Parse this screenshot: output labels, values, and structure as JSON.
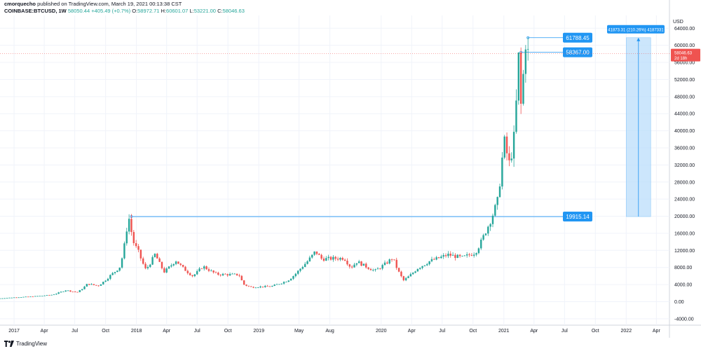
{
  "header": {
    "author": "cmorquecho",
    "published_text": "published on TradingView.com, March 19, 2021 00:13:38 CST",
    "symbol": "COINBASE:BTCUSD, 1W",
    "last": "58050.44",
    "change": "+405.49 (+0.7%)",
    "o_label": "O:",
    "o_value": "58972.71",
    "h_label": "H:",
    "h_value": "60601.07",
    "l_label": "L:",
    "l_value": "53221.00",
    "c_label": "C:",
    "c_value": "58046.63"
  },
  "colors": {
    "up": "#26a69a",
    "down": "#ef5350",
    "tag": "#2196f3",
    "price_tag": "#ef5350",
    "range_fill": "#bbdefb"
  },
  "annotations": {
    "range_box_label": "41873.31 (210.26%) 4187331",
    "current_price": "58046.63",
    "countdown": "2d 18h"
  },
  "footer": {
    "brand": "TradingView"
  },
  "chart_data": {
    "type": "candlestick",
    "currency_label": "USD",
    "y_ticks": [
      64000,
      60000,
      56000,
      52000,
      48000,
      44000,
      40000,
      36000,
      32000,
      28000,
      24000,
      20000,
      16000,
      12000,
      8000,
      4000,
      0,
      -4000
    ],
    "y_tick_labels": [
      "64000.00",
      "60000.00",
      "56000.00",
      "52000.00",
      "48000.00",
      "44000.00",
      "40000.00",
      "36000.00",
      "32000.00",
      "28000.00",
      "24000.00",
      "20000.00",
      "16000.00",
      "12000.00",
      "8000.00",
      "4000.00",
      "0.00",
      "-4000.00"
    ],
    "ylim": [
      -5500,
      67000
    ],
    "x_range": [
      "2016-11-20",
      "2022-05-10"
    ],
    "x_ticks": [
      {
        "date": "2017-01-01",
        "label": "2017"
      },
      {
        "date": "2017-04-01",
        "label": "Apr"
      },
      {
        "date": "2017-07-01",
        "label": "Jul"
      },
      {
        "date": "2017-10-01",
        "label": "Oct"
      },
      {
        "date": "2018-01-01",
        "label": "2018"
      },
      {
        "date": "2018-04-01",
        "label": "Apr"
      },
      {
        "date": "2018-07-01",
        "label": "Jul"
      },
      {
        "date": "2018-10-01",
        "label": "Oct"
      },
      {
        "date": "2019-01-01",
        "label": "2019"
      },
      {
        "date": "2019-05-01",
        "label": "May"
      },
      {
        "date": "2019-08-01",
        "label": "Aug"
      },
      {
        "date": "2020-01-01",
        "label": "2020"
      },
      {
        "date": "2020-04-01",
        "label": "Apr"
      },
      {
        "date": "2020-07-01",
        "label": "Jul"
      },
      {
        "date": "2020-10-01",
        "label": "Oct"
      },
      {
        "date": "2021-01-01",
        "label": "2021"
      },
      {
        "date": "2021-04-01",
        "label": "Apr"
      },
      {
        "date": "2021-07-01",
        "label": "Jul"
      },
      {
        "date": "2021-10-01",
        "label": "Oct"
      },
      {
        "date": "2022-01-01",
        "label": "2022"
      },
      {
        "date": "2022-04-01",
        "label": "Apr"
      }
    ],
    "anchors": [
      [
        "2016-11-20",
        740
      ],
      [
        "2017-01-01",
        960
      ],
      [
        "2017-03-01",
        1200
      ],
      [
        "2017-05-01",
        1600
      ],
      [
        "2017-06-10",
        2700
      ],
      [
        "2017-07-15",
        2200
      ],
      [
        "2017-08-15",
        4200
      ],
      [
        "2017-09-15",
        3700
      ],
      [
        "2017-10-20",
        6000
      ],
      [
        "2017-11-20",
        8200
      ],
      [
        "2017-12-10",
        17000
      ],
      [
        "2017-12-17",
        19400
      ],
      [
        "2017-12-31",
        13800
      ],
      [
        "2018-01-15",
        11500
      ],
      [
        "2018-02-05",
        7500
      ],
      [
        "2018-03-05",
        11200
      ],
      [
        "2018-04-01",
        7000
      ],
      [
        "2018-05-05",
        9700
      ],
      [
        "2018-06-25",
        6000
      ],
      [
        "2018-07-25",
        8300
      ],
      [
        "2018-09-05",
        6400
      ],
      [
        "2018-11-10",
        6300
      ],
      [
        "2018-11-25",
        4000
      ],
      [
        "2018-12-15",
        3400
      ],
      [
        "2019-02-15",
        3600
      ],
      [
        "2019-04-05",
        5000
      ],
      [
        "2019-05-15",
        8000
      ],
      [
        "2019-06-26",
        11800
      ],
      [
        "2019-07-15",
        10000
      ],
      [
        "2019-09-20",
        10200
      ],
      [
        "2019-10-10",
        8000
      ],
      [
        "2019-10-28",
        9400
      ],
      [
        "2019-12-20",
        7200
      ],
      [
        "2020-02-12",
        10300
      ],
      [
        "2020-03-15",
        5000
      ],
      [
        "2020-04-25",
        7800
      ],
      [
        "2020-06-01",
        9500
      ],
      [
        "2020-07-25",
        11000
      ],
      [
        "2020-09-05",
        10300
      ],
      [
        "2020-10-15",
        11500
      ],
      [
        "2020-11-15",
        16500
      ],
      [
        "2020-12-20",
        23500
      ],
      [
        "2021-01-08",
        38000
      ],
      [
        "2021-01-25",
        32000
      ],
      [
        "2021-02-08",
        38800
      ],
      [
        "2021-02-21",
        57000
      ],
      [
        "2021-02-28",
        46000
      ],
      [
        "2021-03-14",
        61000
      ],
      [
        "2021-03-19",
        58050
      ]
    ],
    "horizontal_levels": [
      {
        "from": "2017-12-17",
        "value": 19915.14,
        "label": "19915.14"
      },
      {
        "from": "2021-02-21",
        "value": 58367.0,
        "label": "58367.00"
      },
      {
        "from": "2021-03-14",
        "value": 61788.45,
        "label": "61788.45"
      }
    ],
    "current_price": 58046.63,
    "range_box": {
      "x_start": "2022-01-01",
      "x_end": "2022-03-15",
      "y_low": 19915.14,
      "y_high": 61788.45
    }
  }
}
